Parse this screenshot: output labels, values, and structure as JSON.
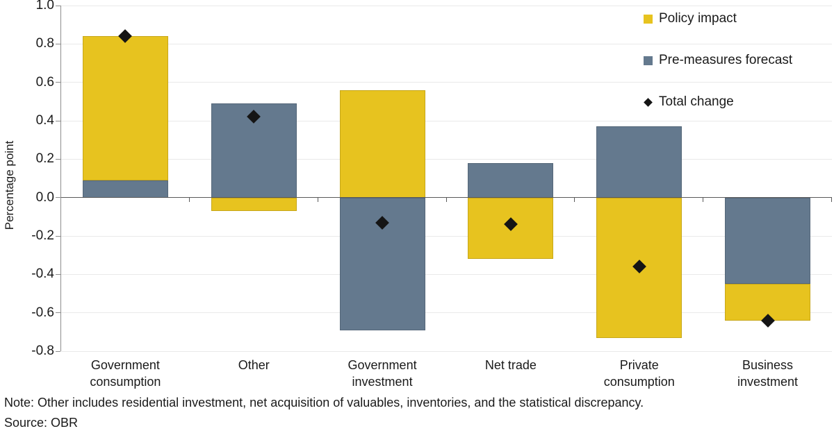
{
  "chart_data": {
    "type": "bar",
    "stacked": true,
    "title": "",
    "xlabel": "",
    "ylabel": "Percentage point",
    "ylim": [
      -0.8,
      1.0
    ],
    "ytick_step": 0.2,
    "grid": "horizontal",
    "legend_position": "top-right",
    "categories": [
      "Government consumption",
      "Other",
      "Government investment",
      "Net trade",
      "Private consumption",
      "Business investment"
    ],
    "series": [
      {
        "name": "Policy impact",
        "color": "#e7c31f",
        "border_color": "#c7a71a",
        "values": [
          0.75,
          -0.07,
          0.56,
          -0.32,
          -0.73,
          -0.19
        ]
      },
      {
        "name": "Pre-measures forecast",
        "color": "#64798e",
        "border_color": "#556779",
        "values": [
          0.09,
          0.49,
          -0.69,
          0.18,
          0.37,
          -0.45
        ]
      }
    ],
    "markers": {
      "name": "Total change",
      "shape": "diamond",
      "color": "#151515",
      "values": [
        0.84,
        0.42,
        -0.13,
        -0.14,
        -0.36,
        -0.64
      ]
    },
    "colors": {
      "gridline": "#e9e9e9",
      "zero_line": "#595959",
      "axis": "#8c8c8c"
    },
    "note": "Note: Other includes residential investment, net acquisition of valuables, inventories, and the statistical discrepancy.",
    "source": "Source: OBR"
  }
}
